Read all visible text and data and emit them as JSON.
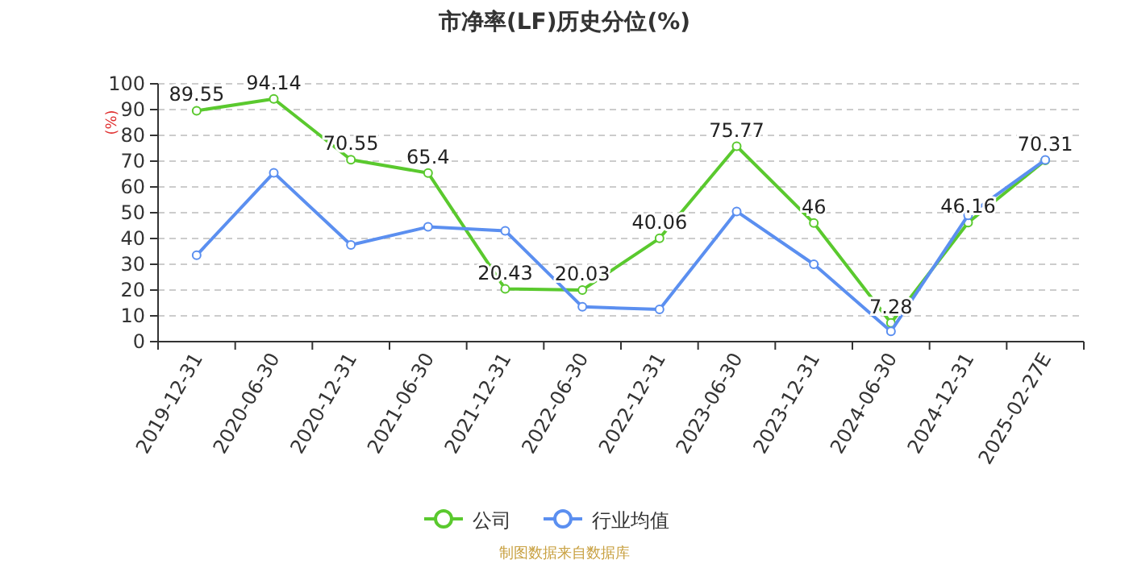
{
  "chart_data": {
    "type": "line",
    "title": "市净率(LF)历史分位(%)",
    "ylabel": "(%)",
    "categories": [
      "2019-12-31",
      "2020-06-30",
      "2020-12-31",
      "2021-06-30",
      "2021-12-31",
      "2022-06-30",
      "2022-12-31",
      "2023-06-30",
      "2023-12-31",
      "2024-06-30",
      "2024-12-31",
      "2025-02-27E"
    ],
    "series": [
      {
        "name": "公司",
        "color": "#5ac92e",
        "values": [
          89.55,
          94.14,
          70.55,
          65.4,
          20.43,
          20.03,
          40.06,
          75.77,
          46,
          7.28,
          46.16,
          70.31
        ],
        "value_labels": [
          "89.55",
          "94.14",
          "70.55",
          "65.4",
          "20.43",
          "20.03",
          "40.06",
          "75.77",
          "46",
          "7.28",
          "46.16",
          "70.31"
        ]
      },
      {
        "name": "行业均值",
        "color": "#5b8ff0",
        "values": [
          33.5,
          65.5,
          37.5,
          44.5,
          43,
          13.5,
          12.5,
          50.5,
          30,
          4,
          49,
          70.5
        ]
      }
    ],
    "ylim": [
      0,
      100
    ],
    "yticks": [
      0,
      10,
      20,
      30,
      40,
      50,
      60,
      70,
      80,
      90,
      100
    ],
    "grid": "y",
    "marker": "circle",
    "line_style": "solid",
    "legend": "bottom",
    "annotations": [
      "制图数据来自数据库"
    ]
  }
}
